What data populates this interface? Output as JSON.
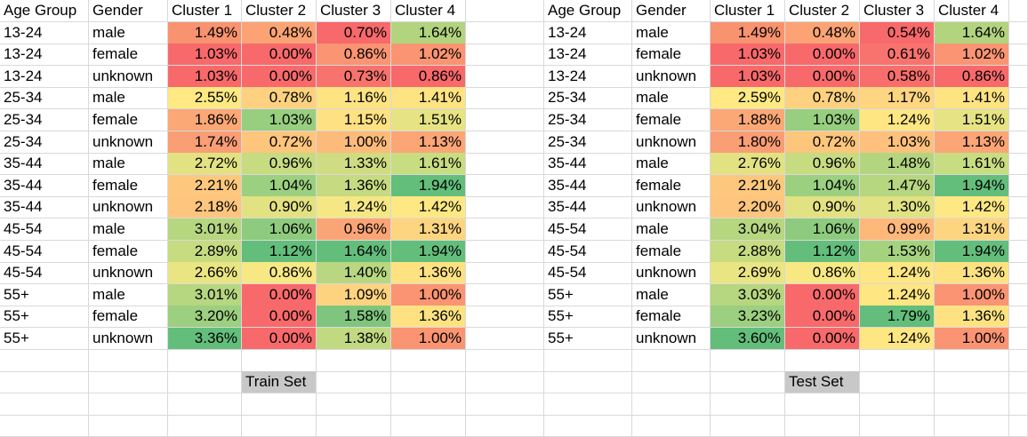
{
  "headers": [
    "Age Group",
    "Gender",
    "Cluster 1",
    "Cluster 2",
    "Cluster 3",
    "Cluster 4"
  ],
  "labels": {
    "train": "Train Set",
    "test": "Test Set"
  },
  "train": [
    [
      "13-24",
      "male",
      [
        "1.49%",
        "#f8926f"
      ],
      [
        "0.48%",
        "#fba374"
      ],
      [
        "0.70%",
        "#f8696b"
      ],
      [
        "1.64%",
        "#b2d47f"
      ]
    ],
    [
      "13-24",
      "female",
      [
        "1.03%",
        "#f8696b"
      ],
      [
        "0.00%",
        "#f8696b"
      ],
      [
        "0.86%",
        "#fa9473"
      ],
      [
        "1.02%",
        "#fa9473"
      ]
    ],
    [
      "13-24",
      "unknown",
      [
        "1.03%",
        "#f8696b"
      ],
      [
        "0.00%",
        "#f8696b"
      ],
      [
        "0.73%",
        "#f8736d"
      ],
      [
        "0.86%",
        "#f8696b"
      ]
    ],
    [
      "25-34",
      "male",
      [
        "2.55%",
        "#fee983"
      ],
      [
        "0.78%",
        "#fdd17f"
      ],
      [
        "1.16%",
        "#fee382"
      ],
      [
        "1.41%",
        "#fee382"
      ]
    ],
    [
      "25-34",
      "female",
      [
        "1.86%",
        "#fba876"
      ],
      [
        "1.03%",
        "#98ce7f"
      ],
      [
        "1.15%",
        "#fee182"
      ],
      [
        "1.51%",
        "#e5e383"
      ]
    ],
    [
      "25-34",
      "unknown",
      [
        "1.74%",
        "#fa9e75"
      ],
      [
        "0.72%",
        "#fec57d"
      ],
      [
        "1.00%",
        "#fdbb7b"
      ],
      [
        "1.13%",
        "#fca577"
      ]
    ],
    [
      "35-44",
      "male",
      [
        "2.72%",
        "#e2e283"
      ],
      [
        "0.96%",
        "#c7db81"
      ],
      [
        "1.33%",
        "#cfdc81"
      ],
      [
        "1.61%",
        "#c8dc81"
      ]
    ],
    [
      "35-44",
      "female",
      [
        "2.21%",
        "#fdc87d"
      ],
      [
        "1.04%",
        "#9ad07f"
      ],
      [
        "1.36%",
        "#c6da81"
      ],
      [
        "1.94%",
        "#63be7b"
      ]
    ],
    [
      "35-44",
      "unknown",
      [
        "2.18%",
        "#fdc57d"
      ],
      [
        "0.90%",
        "#e3e283"
      ],
      [
        "1.24%",
        "#f5e884"
      ],
      [
        "1.42%",
        "#fde883"
      ]
    ],
    [
      "45-54",
      "male",
      [
        "3.01%",
        "#b6d680"
      ],
      [
        "1.06%",
        "#8ecb7e"
      ],
      [
        "0.96%",
        "#fba576"
      ],
      [
        "1.31%",
        "#fdd580"
      ]
    ],
    [
      "45-54",
      "female",
      [
        "2.89%",
        "#c7db81"
      ],
      [
        "1.12%",
        "#63be7b"
      ],
      [
        "1.64%",
        "#63be7b"
      ],
      [
        "1.94%",
        "#63be7b"
      ]
    ],
    [
      "45-54",
      "unknown",
      [
        "2.66%",
        "#eae583"
      ],
      [
        "0.86%",
        "#f7e883"
      ],
      [
        "1.40%",
        "#b9d780"
      ],
      [
        "1.36%",
        "#fee282"
      ]
    ],
    [
      "55+",
      "male",
      [
        "3.01%",
        "#b6d680"
      ],
      [
        "0.00%",
        "#f8696b"
      ],
      [
        "1.09%",
        "#fed380"
      ],
      [
        "1.00%",
        "#fa9473"
      ]
    ],
    [
      "55+",
      "female",
      [
        "3.20%",
        "#9ccf7f"
      ],
      [
        "0.00%",
        "#f8696b"
      ],
      [
        "1.58%",
        "#7fc57d"
      ],
      [
        "1.36%",
        "#fee282"
      ]
    ],
    [
      "55+",
      "unknown",
      [
        "3.36%",
        "#63be7b"
      ],
      [
        "0.00%",
        "#f8696b"
      ],
      [
        "1.38%",
        "#c1d981"
      ],
      [
        "1.00%",
        "#fa9473"
      ]
    ]
  ],
  "test": [
    [
      "13-24",
      "male",
      [
        "1.49%",
        "#f8926f"
      ],
      [
        "0.48%",
        "#fba374"
      ],
      [
        "0.54%",
        "#f8696b"
      ],
      [
        "1.64%",
        "#b2d47f"
      ]
    ],
    [
      "13-24",
      "female",
      [
        "1.03%",
        "#f8696b"
      ],
      [
        "0.00%",
        "#f8696b"
      ],
      [
        "0.61%",
        "#f8736d"
      ],
      [
        "1.02%",
        "#fa9473"
      ]
    ],
    [
      "13-24",
      "unknown",
      [
        "1.03%",
        "#f8696b"
      ],
      [
        "0.00%",
        "#f8696b"
      ],
      [
        "0.58%",
        "#f86e6c"
      ],
      [
        "0.86%",
        "#f8696b"
      ]
    ],
    [
      "25-34",
      "male",
      [
        "2.59%",
        "#fee983"
      ],
      [
        "0.78%",
        "#fdd17f"
      ],
      [
        "1.17%",
        "#fed580"
      ],
      [
        "1.41%",
        "#fee382"
      ]
    ],
    [
      "25-34",
      "female",
      [
        "1.88%",
        "#fba876"
      ],
      [
        "1.03%",
        "#98ce7f"
      ],
      [
        "1.24%",
        "#fee683"
      ],
      [
        "1.51%",
        "#e5e383"
      ]
    ],
    [
      "25-34",
      "unknown",
      [
        "1.80%",
        "#fa9e75"
      ],
      [
        "0.72%",
        "#fec57d"
      ],
      [
        "1.03%",
        "#fec07c"
      ],
      [
        "1.13%",
        "#fca577"
      ]
    ],
    [
      "35-44",
      "male",
      [
        "2.76%",
        "#e2e283"
      ],
      [
        "0.96%",
        "#c7db81"
      ],
      [
        "1.48%",
        "#b3d580"
      ],
      [
        "1.61%",
        "#c8dc81"
      ]
    ],
    [
      "35-44",
      "female",
      [
        "2.21%",
        "#fdc87d"
      ],
      [
        "1.04%",
        "#9ad07f"
      ],
      [
        "1.47%",
        "#b6d680"
      ],
      [
        "1.94%",
        "#63be7b"
      ]
    ],
    [
      "35-44",
      "unknown",
      [
        "2.20%",
        "#fdc57d"
      ],
      [
        "0.90%",
        "#e3e283"
      ],
      [
        "1.30%",
        "#e0e283"
      ],
      [
        "1.42%",
        "#fde883"
      ]
    ],
    [
      "45-54",
      "male",
      [
        "3.04%",
        "#b6d680"
      ],
      [
        "1.06%",
        "#8ecb7e"
      ],
      [
        "0.99%",
        "#fdb87a"
      ],
      [
        "1.31%",
        "#fdd580"
      ]
    ],
    [
      "45-54",
      "female",
      [
        "2.88%",
        "#c7db81"
      ],
      [
        "1.12%",
        "#63be7b"
      ],
      [
        "1.53%",
        "#a5d27f"
      ],
      [
        "1.94%",
        "#63be7b"
      ]
    ],
    [
      "45-54",
      "unknown",
      [
        "2.69%",
        "#eae583"
      ],
      [
        "0.86%",
        "#f7e883"
      ],
      [
        "1.24%",
        "#fee683"
      ],
      [
        "1.36%",
        "#fee282"
      ]
    ],
    [
      "55+",
      "male",
      [
        "3.03%",
        "#b6d680"
      ],
      [
        "0.00%",
        "#f8696b"
      ],
      [
        "1.24%",
        "#fee683"
      ],
      [
        "1.00%",
        "#fa9473"
      ]
    ],
    [
      "55+",
      "female",
      [
        "3.23%",
        "#9ccf7f"
      ],
      [
        "0.00%",
        "#f8696b"
      ],
      [
        "1.79%",
        "#63be7b"
      ],
      [
        "1.36%",
        "#fee282"
      ]
    ],
    [
      "55+",
      "unknown",
      [
        "3.60%",
        "#63be7b"
      ],
      [
        "0.00%",
        "#f8696b"
      ],
      [
        "1.24%",
        "#fee683"
      ],
      [
        "1.00%",
        "#fa9473"
      ]
    ]
  ]
}
